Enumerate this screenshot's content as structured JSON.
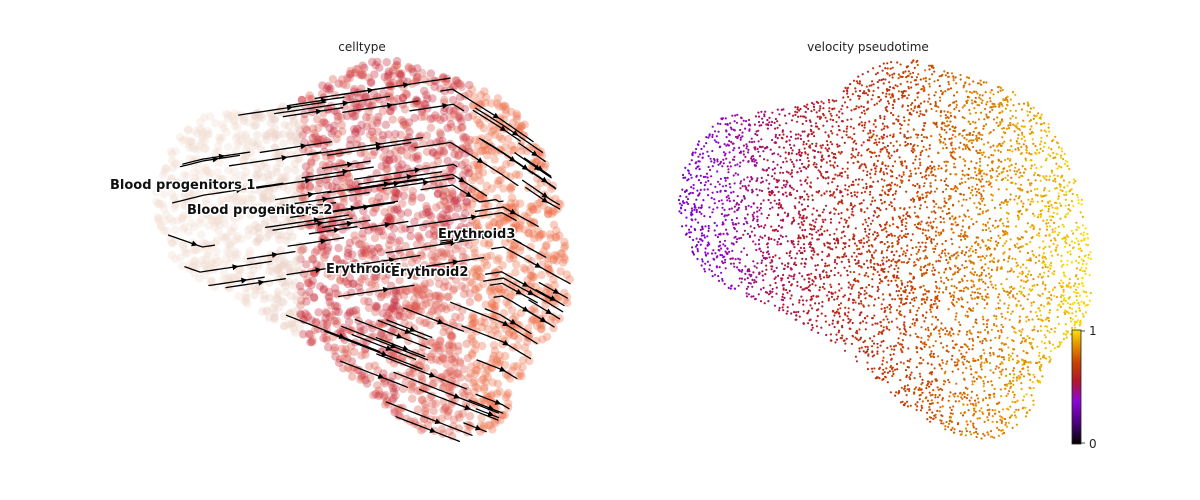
{
  "chart_data": [
    {
      "type": "scatter",
      "title": "celltype",
      "cluster_labels": [
        {
          "name": "Blood progenitors 1",
          "color": "#f2dcd2"
        },
        {
          "name": "Blood progenitors 2",
          "color": "#ead0c5"
        },
        {
          "name": "Erythroid1",
          "color": "#c72a3d"
        },
        {
          "name": "Erythroid2",
          "color": "#de5a4c"
        },
        {
          "name": "Erythroid3",
          "color": "#ef6f4a"
        }
      ],
      "overlay": "velocity-streamlines",
      "grid": false,
      "axes_visible": false
    },
    {
      "type": "scatter",
      "title": "velocity pseudotime",
      "colorbar": {
        "min": "0",
        "max": "1",
        "colormap": "gnuplot"
      },
      "grid": false,
      "axes_visible": false
    }
  ]
}
